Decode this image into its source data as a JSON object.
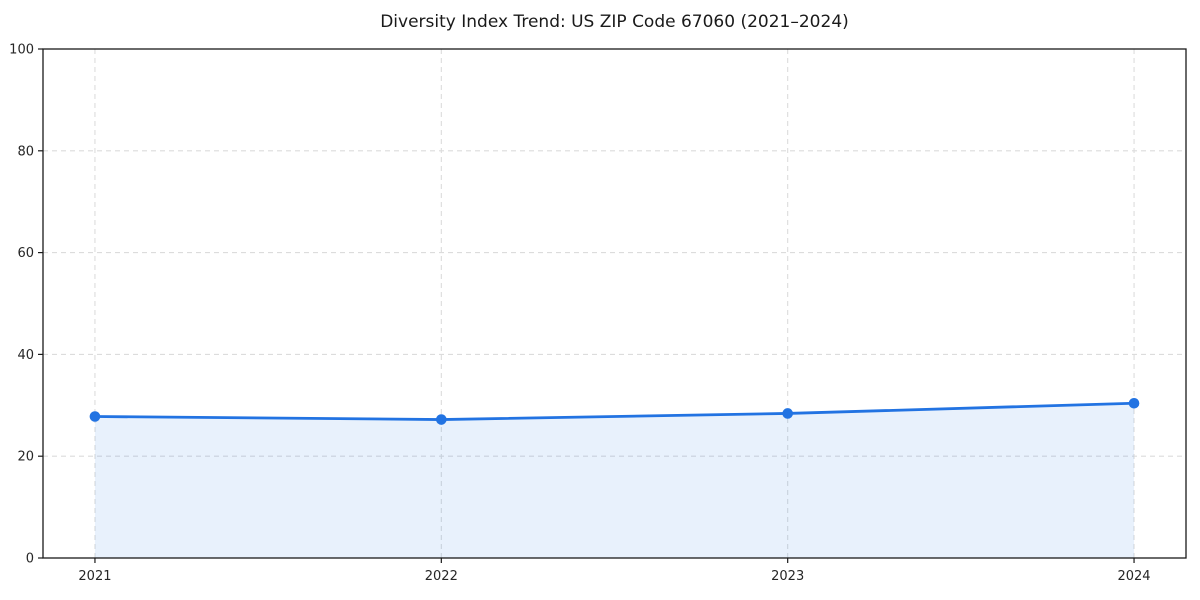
{
  "chart_data": {
    "type": "area",
    "title": "Diversity Index Trend: US ZIP Code 67060 (2021–2024)",
    "categories": [
      "2021",
      "2022",
      "2023",
      "2024"
    ],
    "series": [
      {
        "name": "Diversity Index",
        "values": [
          27.8,
          27.2,
          28.4,
          30.4
        ]
      }
    ],
    "xlabel": "",
    "ylabel": "",
    "ylim": [
      0,
      100
    ],
    "yticks": [
      0,
      20,
      40,
      60,
      80,
      100
    ],
    "grid": true,
    "grid_style": "dashed",
    "legend": false,
    "colors": {
      "line": "#2273e2",
      "marker": "#2273e2",
      "fill": "#2273e2",
      "fill_opacity": 0.1,
      "grid": "#dcdcdc",
      "spine": "#1a1a1a",
      "tick_text": "#262626",
      "background": "#ffffff"
    }
  }
}
